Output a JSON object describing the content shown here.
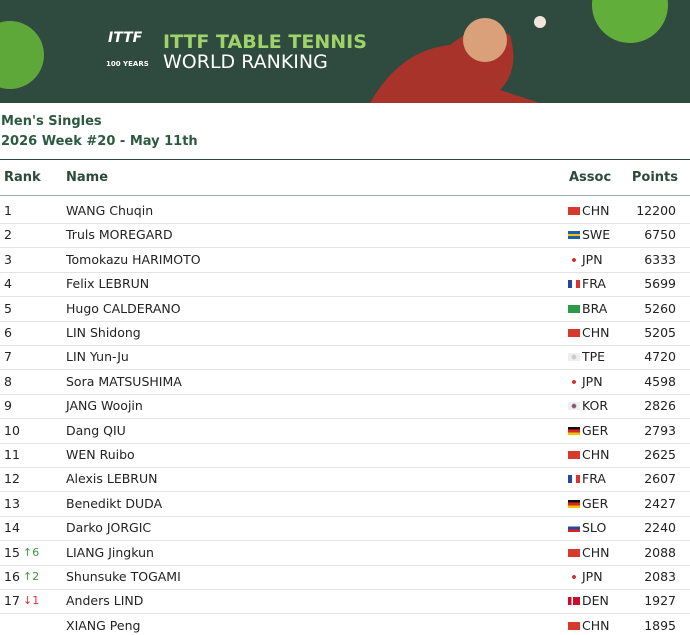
{
  "header": {
    "brand_line1": "ITTF TABLE TENNIS",
    "brand_line2": "WORLD RANKING",
    "logo_text": "ITTF",
    "logo_sub": "100 YEARS"
  },
  "subtitle": {
    "event": "Men's Singles",
    "week": "2026 Week #20 - May 11th"
  },
  "table": {
    "columns": [
      "Rank",
      "Name",
      "Assoc",
      "Points"
    ],
    "rows": [
      {
        "rank": 1,
        "name": "WANG Chuqin",
        "assoc": "CHN",
        "points": 12200
      },
      {
        "rank": 2,
        "name": "Truls MOREGARD",
        "assoc": "SWE",
        "points": 6750
      },
      {
        "rank": 3,
        "name": "Tomokazu HARIMOTO",
        "assoc": "JPN",
        "points": 6333
      },
      {
        "rank": 4,
        "name": "Felix LEBRUN",
        "assoc": "FRA",
        "points": 5699
      },
      {
        "rank": 5,
        "name": "Hugo CALDERANO",
        "assoc": "BRA",
        "points": 5260
      },
      {
        "rank": 6,
        "name": "LIN Shidong",
        "assoc": "CHN",
        "points": 5205
      },
      {
        "rank": 7,
        "name": "LIN Yun-Ju",
        "assoc": "TPE",
        "points": 4720
      },
      {
        "rank": 8,
        "name": "Sora MATSUSHIMA",
        "assoc": "JPN",
        "points": 4598
      },
      {
        "rank": 9,
        "name": "JANG Woojin",
        "assoc": "KOR",
        "points": 2826
      },
      {
        "rank": 10,
        "name": "Dang QIU",
        "assoc": "GER",
        "points": 2793
      },
      {
        "rank": 11,
        "name": "WEN Ruibo",
        "assoc": "CHN",
        "points": 2625
      },
      {
        "rank": 12,
        "name": "Alexis LEBRUN",
        "assoc": "FRA",
        "points": 2607
      },
      {
        "rank": 13,
        "name": "Benedikt DUDA",
        "assoc": "GER",
        "points": 2427
      },
      {
        "rank": 14,
        "name": "Darko JORGIC",
        "assoc": "SLO",
        "points": 2240
      },
      {
        "rank": 15,
        "move": "↑6",
        "name": "LIANG Jingkun",
        "assoc": "CHN",
        "points": 2088
      },
      {
        "rank": 16,
        "move": "↑2",
        "name": "Shunsuke TOGAMI",
        "assoc": "JPN",
        "points": 2083
      },
      {
        "rank": 17,
        "move": "↓1",
        "name": "Anders LIND",
        "assoc": "DEN",
        "points": 1927
      },
      {
        "name": "XIANG Peng",
        "assoc": "CHN",
        "points": 1895
      }
    ]
  }
}
